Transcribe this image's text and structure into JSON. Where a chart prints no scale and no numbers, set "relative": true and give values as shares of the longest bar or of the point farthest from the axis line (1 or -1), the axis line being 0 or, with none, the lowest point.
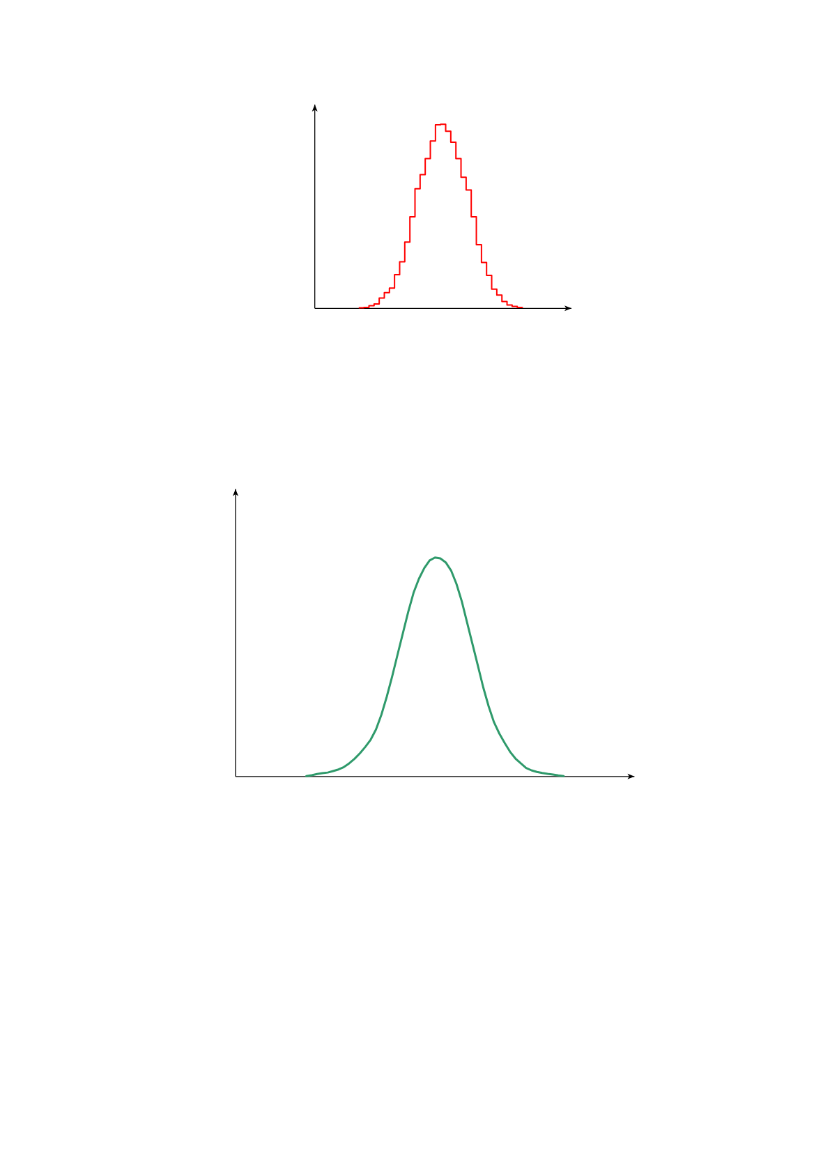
{
  "chart_data": [
    {
      "type": "step",
      "relative": true,
      "color": "#ff0000",
      "categories": [
        null,
        null,
        null,
        null,
        null,
        null,
        null,
        null,
        null,
        null,
        null,
        null,
        null,
        null,
        null,
        null,
        null,
        null,
        null,
        null,
        null,
        null,
        null,
        null,
        null,
        null,
        null,
        null,
        null,
        null,
        null,
        null,
        null
      ],
      "values": [
        0.003,
        0.005,
        0.014,
        0.024,
        0.056,
        0.085,
        0.11,
        0.183,
        0.253,
        0.36,
        0.497,
        0.65,
        0.726,
        0.813,
        0.909,
        0.997,
        1,
        0.962,
        0.902,
        0.813,
        0.712,
        0.643,
        0.497,
        0.346,
        0.249,
        0.179,
        0.104,
        0.072,
        0.037,
        0.018,
        0.011,
        0.005,
        0.003
      ]
    },
    {
      "type": "line",
      "relative": true,
      "color": "#2f9a6b",
      "categories": [
        null,
        null,
        null,
        null,
        null,
        null,
        null,
        null,
        null,
        null,
        null,
        null,
        null,
        null,
        null,
        null,
        null,
        null,
        null,
        null,
        null,
        null,
        null,
        null,
        null,
        null,
        null,
        null,
        null,
        null,
        null,
        null,
        null,
        null,
        null,
        null,
        null,
        null,
        null,
        null,
        null,
        null,
        null,
        null,
        null,
        null,
        null,
        null,
        null
      ],
      "values": [
        0.002,
        0.006,
        0.011,
        0.015,
        0.018,
        0.025,
        0.032,
        0.043,
        0.06,
        0.081,
        0.106,
        0.135,
        0.168,
        0.215,
        0.282,
        0.364,
        0.456,
        0.555,
        0.653,
        0.751,
        0.839,
        0.903,
        0.952,
        0.987,
        1,
        0.996,
        0.978,
        0.941,
        0.88,
        0.8,
        0.702,
        0.604,
        0.506,
        0.407,
        0.321,
        0.248,
        0.196,
        0.153,
        0.113,
        0.082,
        0.06,
        0.039,
        0.028,
        0.021,
        0.016,
        0.012,
        0.009,
        0.005,
        0.002
      ]
    }
  ]
}
